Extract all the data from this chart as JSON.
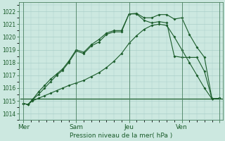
{
  "background_color": "#cce8e0",
  "grid_color": "#aacfc8",
  "line_color": "#1a5c2a",
  "ylabel": "Pression niveau de la mer( hPa )",
  "ylim": [
    1013.5,
    1022.7
  ],
  "yticks": [
    1014,
    1015,
    1016,
    1017,
    1018,
    1019,
    1020,
    1021,
    1022
  ],
  "figsize": [
    3.2,
    2.0
  ],
  "dpi": 100,
  "vline_x": [
    0.0,
    3.5,
    7.0,
    10.5,
    13.0
  ],
  "xtick_positions": [
    0.0,
    3.5,
    7.0,
    10.5,
    13.0
  ],
  "xtick_labels": [
    "Mer",
    "Sam",
    "Jeu",
    "Ven",
    ""
  ],
  "s1_x": [
    0.0,
    0.3,
    0.6,
    1.0,
    1.4,
    1.8,
    2.2,
    2.6,
    3.0,
    3.5,
    4.0,
    4.5,
    5.0,
    5.5,
    6.0,
    6.5,
    7.0,
    7.5,
    8.0,
    8.5,
    9.0,
    9.5,
    10.0,
    10.5,
    11.0,
    11.5,
    12.0,
    12.5,
    13.0
  ],
  "s1_y": [
    1014.8,
    1014.7,
    1015.1,
    1015.7,
    1016.2,
    1016.7,
    1017.1,
    1017.5,
    1018.1,
    1019.0,
    1018.8,
    1019.4,
    1019.8,
    1020.3,
    1020.5,
    1020.5,
    1021.8,
    1021.85,
    1021.5,
    1021.5,
    1021.75,
    1021.75,
    1021.4,
    1021.5,
    1020.2,
    1019.2,
    1018.4,
    1015.15,
    1015.2
  ],
  "s2_x": [
    0.0,
    0.3,
    0.6,
    1.0,
    1.4,
    1.8,
    2.2,
    2.6,
    3.0,
    3.5,
    4.0,
    4.5,
    5.0,
    5.5,
    6.0,
    6.5,
    7.0,
    7.5,
    8.0,
    8.5,
    9.0,
    9.5,
    10.0,
    10.5,
    11.0,
    11.5,
    12.0,
    12.5,
    13.0
  ],
  "s2_y": [
    1014.8,
    1014.7,
    1015.1,
    1015.5,
    1016.0,
    1016.5,
    1017.0,
    1017.4,
    1018.0,
    1018.9,
    1018.7,
    1019.3,
    1019.6,
    1020.2,
    1020.4,
    1020.4,
    1021.8,
    1021.8,
    1021.3,
    1021.1,
    1021.2,
    1021.1,
    1018.5,
    1018.4,
    1018.4,
    1018.4,
    1017.3,
    1015.15,
    1015.2
  ],
  "s3_x": [
    0.0,
    0.3,
    0.6,
    1.0,
    1.4,
    1.8,
    2.2,
    2.6,
    3.0,
    3.5,
    4.0,
    4.5,
    5.0,
    5.5,
    6.0,
    6.5,
    7.0,
    7.5,
    8.0,
    8.5,
    9.0,
    9.5,
    10.0,
    10.5,
    11.0,
    11.5,
    12.0,
    12.5,
    13.0
  ],
  "s3_y": [
    1014.8,
    1014.7,
    1015.0,
    1015.2,
    1015.4,
    1015.6,
    1015.8,
    1016.0,
    1016.2,
    1016.4,
    1016.6,
    1016.9,
    1017.2,
    1017.6,
    1018.1,
    1018.7,
    1019.5,
    1020.1,
    1020.6,
    1020.9,
    1021.0,
    1020.9,
    1020.0,
    1019.0,
    1018.0,
    1017.0,
    1016.0,
    1015.15,
    1015.2
  ],
  "flat_y": 1015.15,
  "flat_x0": -0.2,
  "flat_x1": 13.2
}
